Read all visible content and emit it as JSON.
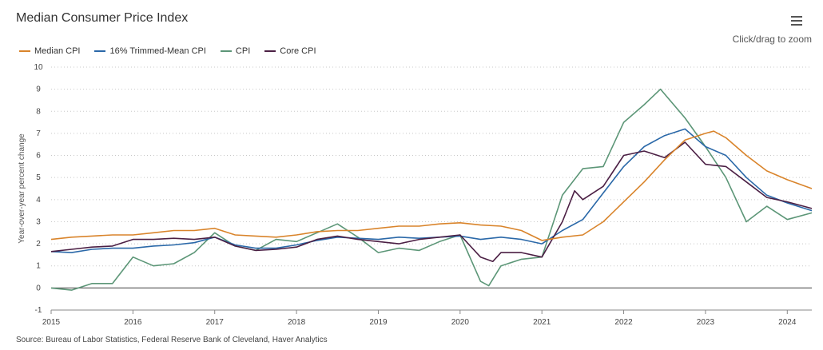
{
  "header": {
    "title": "Median Consumer Price Index",
    "zoom_hint": "Click/drag to zoom"
  },
  "source": "Source: Bureau of Labor Statistics, Federal Reserve Bank of Cleveland, Haver Analytics",
  "chart_data": {
    "type": "line",
    "title": "Median Consumer Price Index",
    "xlabel": "",
    "ylabel": "Year-over-year percent change",
    "xlim": [
      2015.0,
      2024.3
    ],
    "ylim": [
      -1,
      10
    ],
    "xticks": [
      "2015",
      "2016",
      "2017",
      "2018",
      "2019",
      "2020",
      "2021",
      "2022",
      "2023",
      "2024"
    ],
    "yticks": [
      "-1",
      "0",
      "1",
      "2",
      "3",
      "4",
      "5",
      "6",
      "7",
      "8",
      "9",
      "10"
    ],
    "grid": "horizontal dotted",
    "legend": "top-left",
    "series": [
      {
        "name": "Median CPI",
        "color": "#d9842b",
        "x": [
          2015.0,
          2015.25,
          2015.5,
          2015.75,
          2016.0,
          2016.25,
          2016.5,
          2016.75,
          2017.0,
          2017.25,
          2017.5,
          2017.75,
          2018.0,
          2018.25,
          2018.5,
          2018.75,
          2019.0,
          2019.25,
          2019.5,
          2019.75,
          2020.0,
          2020.25,
          2020.5,
          2020.75,
          2021.0,
          2021.25,
          2021.5,
          2021.75,
          2022.0,
          2022.25,
          2022.5,
          2022.75,
          2023.0,
          2023.1,
          2023.25,
          2023.5,
          2023.75,
          2024.0,
          2024.3
        ],
        "y": [
          2.2,
          2.3,
          2.35,
          2.4,
          2.4,
          2.5,
          2.6,
          2.6,
          2.7,
          2.4,
          2.35,
          2.3,
          2.4,
          2.55,
          2.6,
          2.6,
          2.7,
          2.8,
          2.8,
          2.9,
          2.95,
          2.85,
          2.8,
          2.6,
          2.15,
          2.3,
          2.4,
          3.0,
          3.9,
          4.8,
          5.8,
          6.7,
          7.0,
          7.1,
          6.8,
          6.0,
          5.3,
          4.9,
          4.5
        ]
      },
      {
        "name": "16% Trimmed-Mean CPI",
        "color": "#2a68a8",
        "x": [
          2015.0,
          2015.25,
          2015.5,
          2015.75,
          2016.0,
          2016.25,
          2016.5,
          2016.75,
          2017.0,
          2017.25,
          2017.5,
          2017.75,
          2018.0,
          2018.25,
          2018.5,
          2018.75,
          2019.0,
          2019.25,
          2019.5,
          2019.75,
          2020.0,
          2020.25,
          2020.5,
          2020.75,
          2021.0,
          2021.25,
          2021.5,
          2021.75,
          2022.0,
          2022.25,
          2022.5,
          2022.75,
          2023.0,
          2023.25,
          2023.5,
          2023.75,
          2024.0,
          2024.3
        ],
        "y": [
          1.65,
          1.6,
          1.75,
          1.8,
          1.8,
          1.9,
          1.95,
          2.05,
          2.3,
          1.95,
          1.8,
          1.8,
          1.95,
          2.15,
          2.3,
          2.25,
          2.2,
          2.3,
          2.25,
          2.3,
          2.35,
          2.2,
          2.3,
          2.2,
          2.0,
          2.6,
          3.1,
          4.3,
          5.5,
          6.4,
          6.9,
          7.2,
          6.4,
          6.0,
          5.0,
          4.2,
          3.85,
          3.5
        ]
      },
      {
        "name": "CPI",
        "color": "#5c9677",
        "x": [
          2015.0,
          2015.25,
          2015.5,
          2015.75,
          2016.0,
          2016.25,
          2016.5,
          2016.75,
          2017.0,
          2017.25,
          2017.5,
          2017.75,
          2018.0,
          2018.25,
          2018.5,
          2018.75,
          2019.0,
          2019.25,
          2019.5,
          2019.75,
          2020.0,
          2020.25,
          2020.35,
          2020.5,
          2020.75,
          2021.0,
          2021.25,
          2021.5,
          2021.75,
          2022.0,
          2022.25,
          2022.45,
          2022.75,
          2023.0,
          2023.25,
          2023.5,
          2023.75,
          2024.0,
          2024.3
        ],
        "y": [
          0.0,
          -0.1,
          0.2,
          0.2,
          1.4,
          1.0,
          1.1,
          1.6,
          2.5,
          1.9,
          1.7,
          2.2,
          2.1,
          2.5,
          2.9,
          2.3,
          1.6,
          1.8,
          1.7,
          2.1,
          2.4,
          0.3,
          0.1,
          1.0,
          1.3,
          1.4,
          4.2,
          5.4,
          5.5,
          7.5,
          8.3,
          9.0,
          7.7,
          6.4,
          5.0,
          3.0,
          3.7,
          3.1,
          3.4
        ]
      },
      {
        "name": "Core CPI",
        "color": "#4b1f44",
        "x": [
          2015.0,
          2015.25,
          2015.5,
          2015.75,
          2016.0,
          2016.25,
          2016.5,
          2016.75,
          2017.0,
          2017.25,
          2017.5,
          2017.75,
          2018.0,
          2018.25,
          2018.5,
          2018.75,
          2019.0,
          2019.25,
          2019.5,
          2019.75,
          2020.0,
          2020.25,
          2020.4,
          2020.5,
          2020.75,
          2021.0,
          2021.25,
          2021.4,
          2021.5,
          2021.75,
          2022.0,
          2022.25,
          2022.5,
          2022.75,
          2023.0,
          2023.25,
          2023.5,
          2023.75,
          2024.0,
          2024.3
        ],
        "y": [
          1.65,
          1.75,
          1.85,
          1.9,
          2.2,
          2.2,
          2.25,
          2.2,
          2.3,
          1.9,
          1.7,
          1.75,
          1.85,
          2.2,
          2.35,
          2.2,
          2.1,
          2.0,
          2.2,
          2.3,
          2.4,
          1.4,
          1.2,
          1.6,
          1.6,
          1.4,
          3.0,
          4.4,
          4.0,
          4.6,
          6.0,
          6.2,
          5.9,
          6.6,
          5.6,
          5.5,
          4.8,
          4.1,
          3.9,
          3.6
        ]
      }
    ]
  }
}
